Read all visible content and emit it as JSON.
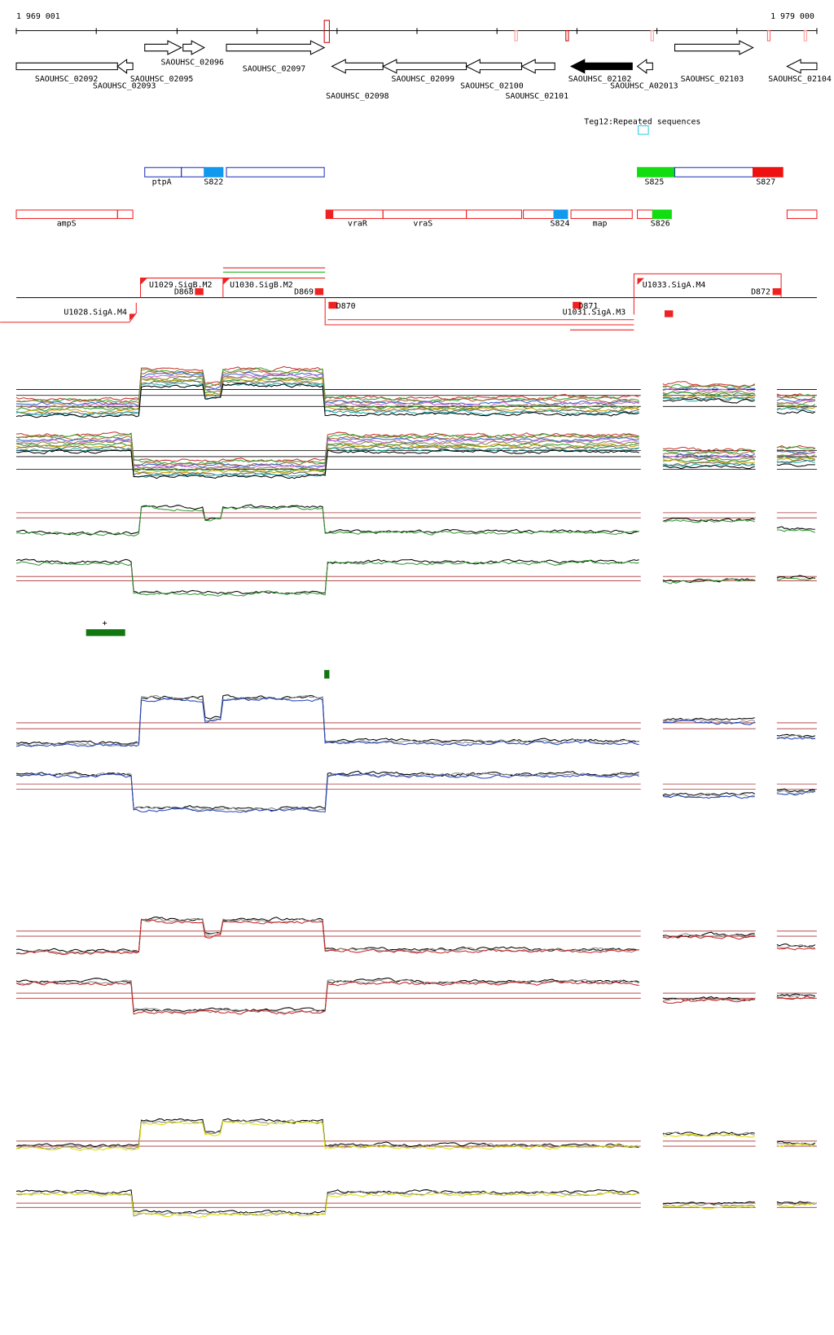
{
  "header": {
    "start": "1 969 001",
    "end": "1 979 000"
  },
  "genes": [
    "SAOUHSC_02092",
    "SAOUHSC_02093",
    "SAOUHSC_02096",
    "SAOUHSC_02095",
    "SAOUHSC_02097",
    "SAOUHSC_02098",
    "SAOUHSC_02099",
    "SAOUHSC_02100",
    "SAOUHSC_02101",
    "SAOUHSC_02102",
    "SAOUHSC_A02013",
    "SAOUHSC_02103",
    "SAOUHSC_02104"
  ],
  "repeats": {
    "label": "Teg12:Repeated sequences"
  },
  "segments_top": [
    "ptpA",
    "S822",
    "S825",
    "S827"
  ],
  "segments_bottom": [
    "ampS",
    "vraR",
    "vraS",
    "S824",
    "map",
    "S826"
  ],
  "promoters": [
    "U1028.SigA.M4",
    "U1029.SigB.M2",
    "D868",
    "U1030.SigB.M2",
    "D869",
    "D870",
    "D871",
    "U1031.SigA.M3",
    "U1033.SigA.M4",
    "D872"
  ],
  "marker": {
    "label": "+"
  }
}
